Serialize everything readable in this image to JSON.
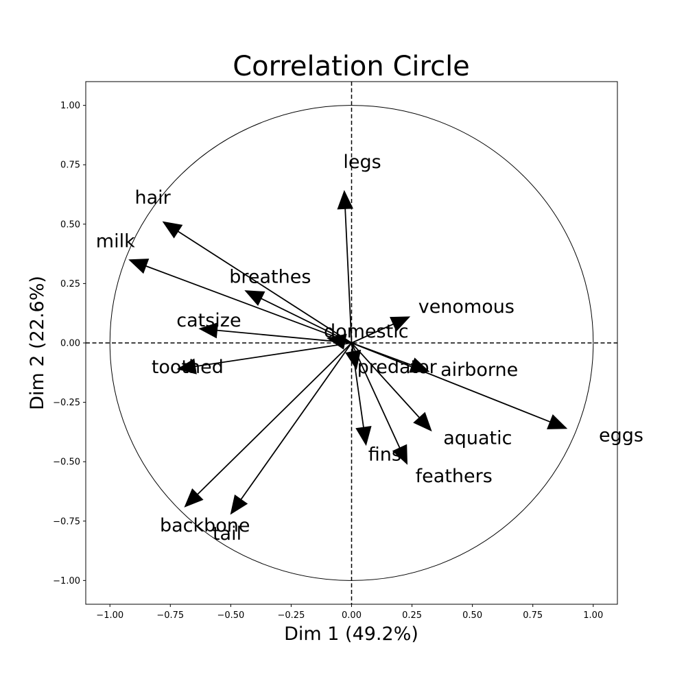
{
  "chart_data": {
    "type": "correlation-circle",
    "title": "Correlation Circle",
    "xlabel": "Dim 1 (49.2%)",
    "ylabel": "Dim 2 (22.6%)",
    "xlim": [
      -1.1,
      1.1
    ],
    "ylim": [
      -1.1,
      1.1
    ],
    "xticks": [
      "−1.00",
      "−0.75",
      "−0.50",
      "−0.25",
      "0.00",
      "0.25",
      "0.50",
      "0.75",
      "1.00"
    ],
    "yticks": [
      "−1.00",
      "−0.75",
      "−0.50",
      "−0.25",
      "0.00",
      "0.25",
      "0.50",
      "0.75",
      "1.00"
    ],
    "circle_radius": 1.0,
    "reference_lines": "dashed lines at x = 0 and y = 0",
    "vectors": [
      {
        "name": "hair",
        "x": -0.78,
        "y": 0.51
      },
      {
        "name": "feathers",
        "x": 0.23,
        "y": -0.51
      },
      {
        "name": "eggs",
        "x": 0.89,
        "y": -0.36
      },
      {
        "name": "milk",
        "x": -0.92,
        "y": 0.35
      },
      {
        "name": "airborne",
        "x": 0.32,
        "y": -0.12
      },
      {
        "name": "aquatic",
        "x": 0.33,
        "y": -0.37
      },
      {
        "name": "predator",
        "x": 0.02,
        "y": -0.11
      },
      {
        "name": "toothed",
        "x": -0.72,
        "y": -0.11
      },
      {
        "name": "backbone",
        "x": -0.69,
        "y": -0.69
      },
      {
        "name": "breathes",
        "x": -0.44,
        "y": 0.22
      },
      {
        "name": "venomous",
        "x": 0.24,
        "y": 0.11
      },
      {
        "name": "fins",
        "x": 0.06,
        "y": -0.43
      },
      {
        "name": "legs",
        "x": -0.03,
        "y": 0.64
      },
      {
        "name": "tail",
        "x": -0.5,
        "y": -0.72
      },
      {
        "name": "domestic",
        "x": -0.1,
        "y": 0.02
      },
      {
        "name": "catsize",
        "x": -0.63,
        "y": 0.06
      }
    ]
  }
}
